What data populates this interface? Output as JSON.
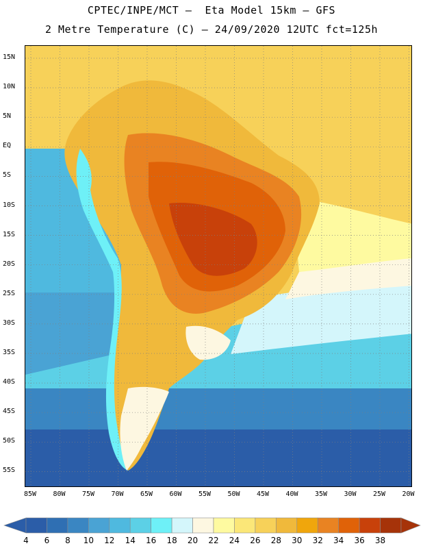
{
  "title": {
    "line1": "CPTEC/INPE/MCT –  Eta Model 15km – GFS",
    "line2": "2 Metre Temperature (C) – 24/09/2020 12UTC fct=125h"
  },
  "axes": {
    "latitudes": [
      "15N",
      "10N",
      "5N",
      "EQ",
      "5S",
      "10S",
      "15S",
      "20S",
      "25S",
      "30S",
      "35S",
      "40S",
      "45S",
      "50S",
      "55S"
    ],
    "longitudes": [
      "85W",
      "80W",
      "75W",
      "70W",
      "65W",
      "60W",
      "55W",
      "50W",
      "45W",
      "40W",
      "35W",
      "30W",
      "25W",
      "20W"
    ]
  },
  "colorbar": {
    "ticks": [
      "4",
      "6",
      "8",
      "10",
      "12",
      "14",
      "16",
      "18",
      "20",
      "22",
      "24",
      "26",
      "28",
      "30",
      "32",
      "34",
      "36",
      "38"
    ],
    "colors": [
      "#2b5da8",
      "#2f6fb3",
      "#3a86c2",
      "#4aa3d4",
      "#4fb9df",
      "#5cd0e6",
      "#6ef0f7",
      "#d4f6fb",
      "#fdf7e1",
      "#fefaa0",
      "#fbe778",
      "#f7d159",
      "#f0b93b",
      "#f0a60c",
      "#e98322",
      "#e06208",
      "#c8410a",
      "#a63309"
    ]
  },
  "legend_regions": {
    "ocean_south": "#2b5da8",
    "ocean_mid": "#4aa3d4",
    "ocean_cold": "#5cd0e6",
    "ocean_cyan": "#6ef0f7",
    "ocean_pale": "#d4f6fb",
    "warm_atlantic": "#fbe778",
    "tropical": "#f7d159",
    "land_hot": "#e06208",
    "land_hottest": "#c8410a"
  }
}
